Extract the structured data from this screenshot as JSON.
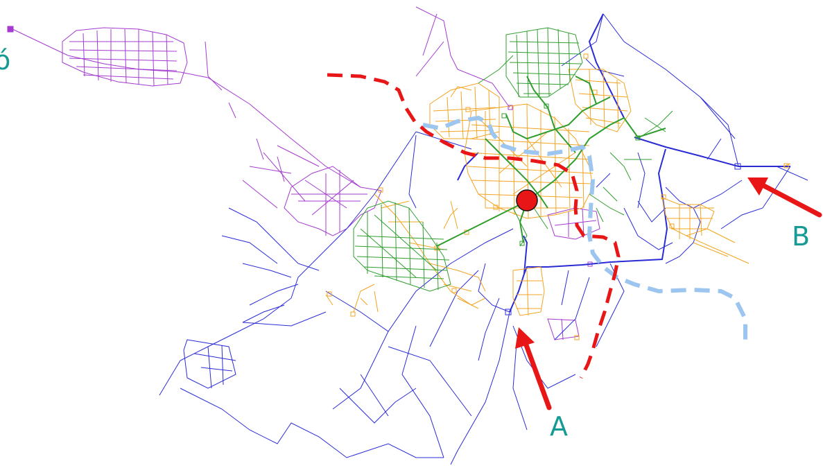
{
  "labels": {
    "a": "A",
    "b": "B",
    "partial_left": "ó"
  },
  "colors": {
    "trunk": "#2b2bd6",
    "orange": "#f3a320",
    "green": "#2f9e2f",
    "purple": "#a43ad0",
    "red": "#e81616",
    "lightblue": "#9cc6f0",
    "label": "#159a94"
  }
}
